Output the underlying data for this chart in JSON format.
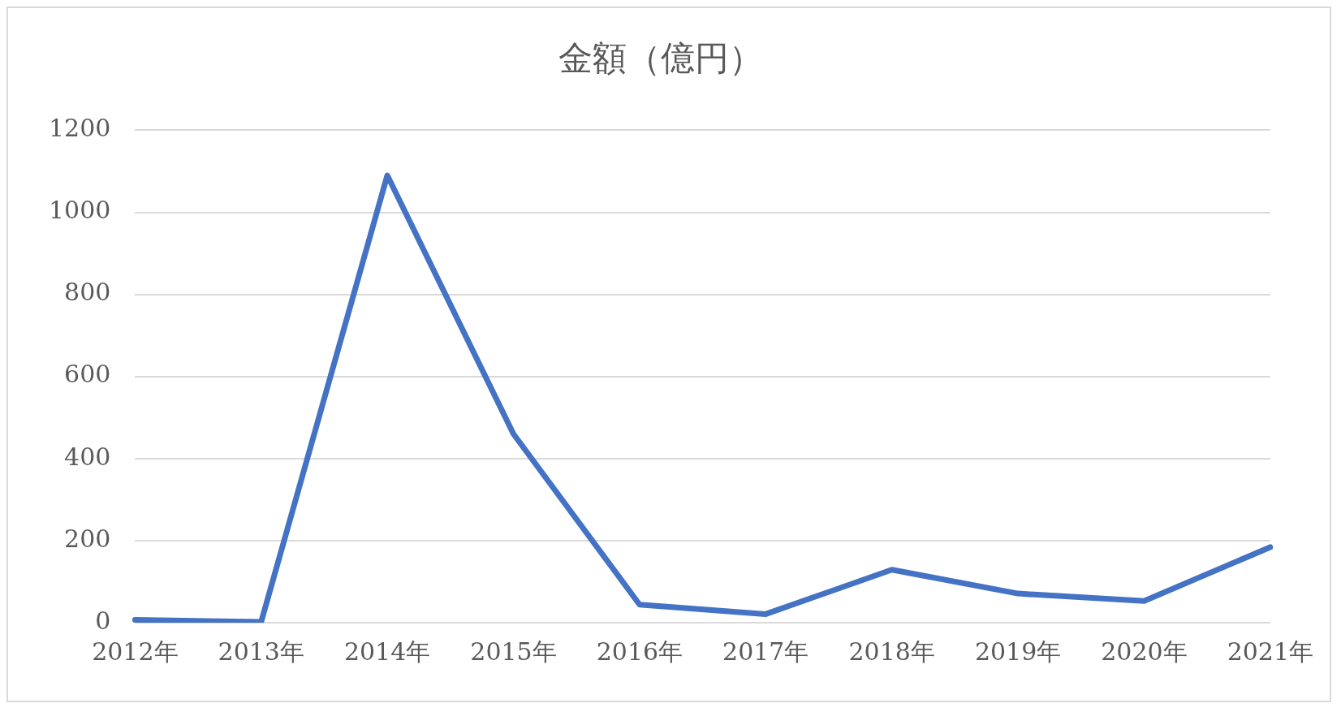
{
  "chart_data": {
    "type": "line",
    "title": "金額（億円）",
    "categories": [
      "2012年",
      "2013年",
      "2014年",
      "2015年",
      "2016年",
      "2017年",
      "2018年",
      "2019年",
      "2020年",
      "2021年"
    ],
    "series": [
      {
        "color": "#4472c4",
        "values": [
          7,
          2,
          1090,
          460,
          44,
          21,
          129,
          71,
          53,
          184
        ]
      }
    ],
    "ylim": [
      0,
      1200
    ],
    "yticks": [
      0,
      200,
      400,
      600,
      800,
      1000,
      1200
    ],
    "grid": "y",
    "legend": false,
    "marker": "none",
    "line_style": "solid"
  }
}
